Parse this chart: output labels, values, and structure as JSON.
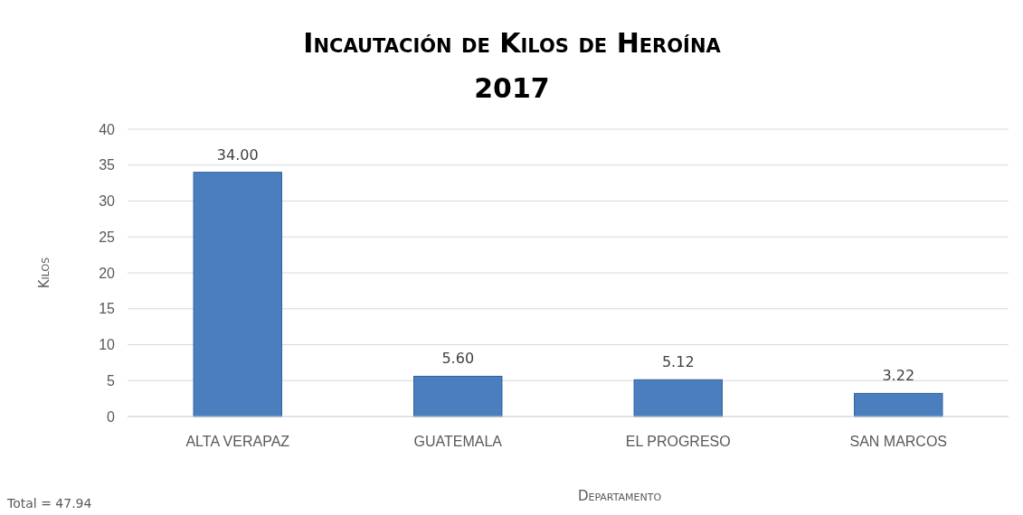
{
  "chart_data": {
    "type": "bar",
    "title": "Incautación de Kilos de Heroína",
    "subtitle": "2017",
    "xlabel": "Departamento",
    "ylabel": "Kilos",
    "categories": [
      "ALTA VERAPAZ",
      "GUATEMALA",
      "EL PROGRESO",
      "SAN MARCOS"
    ],
    "values": [
      34.0,
      5.6,
      5.12,
      3.22
    ],
    "value_labels": [
      "34.00",
      "5.60",
      "5.12",
      "3.22"
    ],
    "color": "#4a7ebf",
    "ylim": [
      0,
      40
    ],
    "yticks": [
      0,
      5,
      10,
      15,
      20,
      25,
      30,
      35,
      40
    ],
    "grid": "y",
    "annotations": [
      "Total = 47.94"
    ]
  }
}
